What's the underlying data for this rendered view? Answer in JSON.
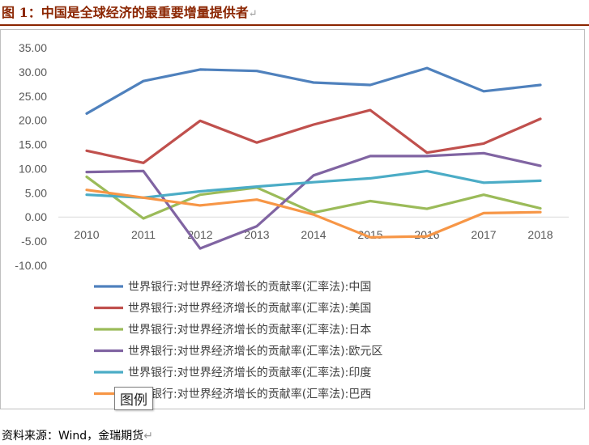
{
  "figure": {
    "title": "图 1：中国是全球经济的最重要增量提供者",
    "return_mark": "↵",
    "source": "资料来源：Wind，金瑞期货",
    "tooltip": "图例"
  },
  "colors": {
    "title": "#8B2500",
    "china": "#4F81BD",
    "usa": "#C0504D",
    "japan": "#9BBB59",
    "euro": "#8064A2",
    "india": "#4BACC6",
    "brazil": "#F79646"
  },
  "chart_data": {
    "type": "line",
    "categories": [
      "2010",
      "2011",
      "2012",
      "2013",
      "2014",
      "2015",
      "2016",
      "2017",
      "2018"
    ],
    "y_ticks": [
      "35.00",
      "30.00",
      "25.00",
      "20.00",
      "15.00",
      "10.00",
      "5.00",
      "0.00",
      "-5.00",
      "-10.00"
    ],
    "ylim": [
      -10,
      35
    ],
    "grid": false,
    "legend_position": "bottom",
    "series": [
      {
        "name": "世界银行:对世界经济增长的贡献率(汇率法):中国",
        "color": "#4F81BD",
        "values": [
          21.4,
          28.1,
          30.5,
          30.2,
          27.8,
          27.3,
          30.8,
          26.0,
          27.3
        ]
      },
      {
        "name": "世界银行:对世界经济增长的贡献率(汇率法):美国",
        "color": "#C0504D",
        "values": [
          13.7,
          11.2,
          19.9,
          15.4,
          19.1,
          22.1,
          13.3,
          15.2,
          20.3
        ]
      },
      {
        "name": "世界银行:对世界经济增长的贡献率(汇率法):日本",
        "color": "#9BBB59",
        "values": [
          8.3,
          -0.3,
          4.6,
          6.1,
          0.9,
          3.3,
          1.7,
          4.6,
          1.8
        ]
      },
      {
        "name": "世界银行:对世界经济增长的贡献率(汇率法):欧元区",
        "color": "#8064A2",
        "values": [
          9.3,
          9.5,
          -6.5,
          -1.9,
          8.6,
          12.6,
          12.6,
          13.2,
          10.6
        ]
      },
      {
        "name": "世界银行:对世界经济增长的贡献率(汇率法):印度",
        "color": "#4BACC6",
        "values": [
          4.6,
          4.0,
          5.3,
          6.3,
          7.2,
          8.0,
          9.5,
          7.1,
          7.5
        ]
      },
      {
        "name": "世界银行:对世界经济增长的贡献率(汇率法):巴西",
        "color": "#F79646",
        "values": [
          5.6,
          4.0,
          2.4,
          3.6,
          0.5,
          -4.2,
          -4.0,
          0.8,
          1.0
        ]
      }
    ]
  }
}
